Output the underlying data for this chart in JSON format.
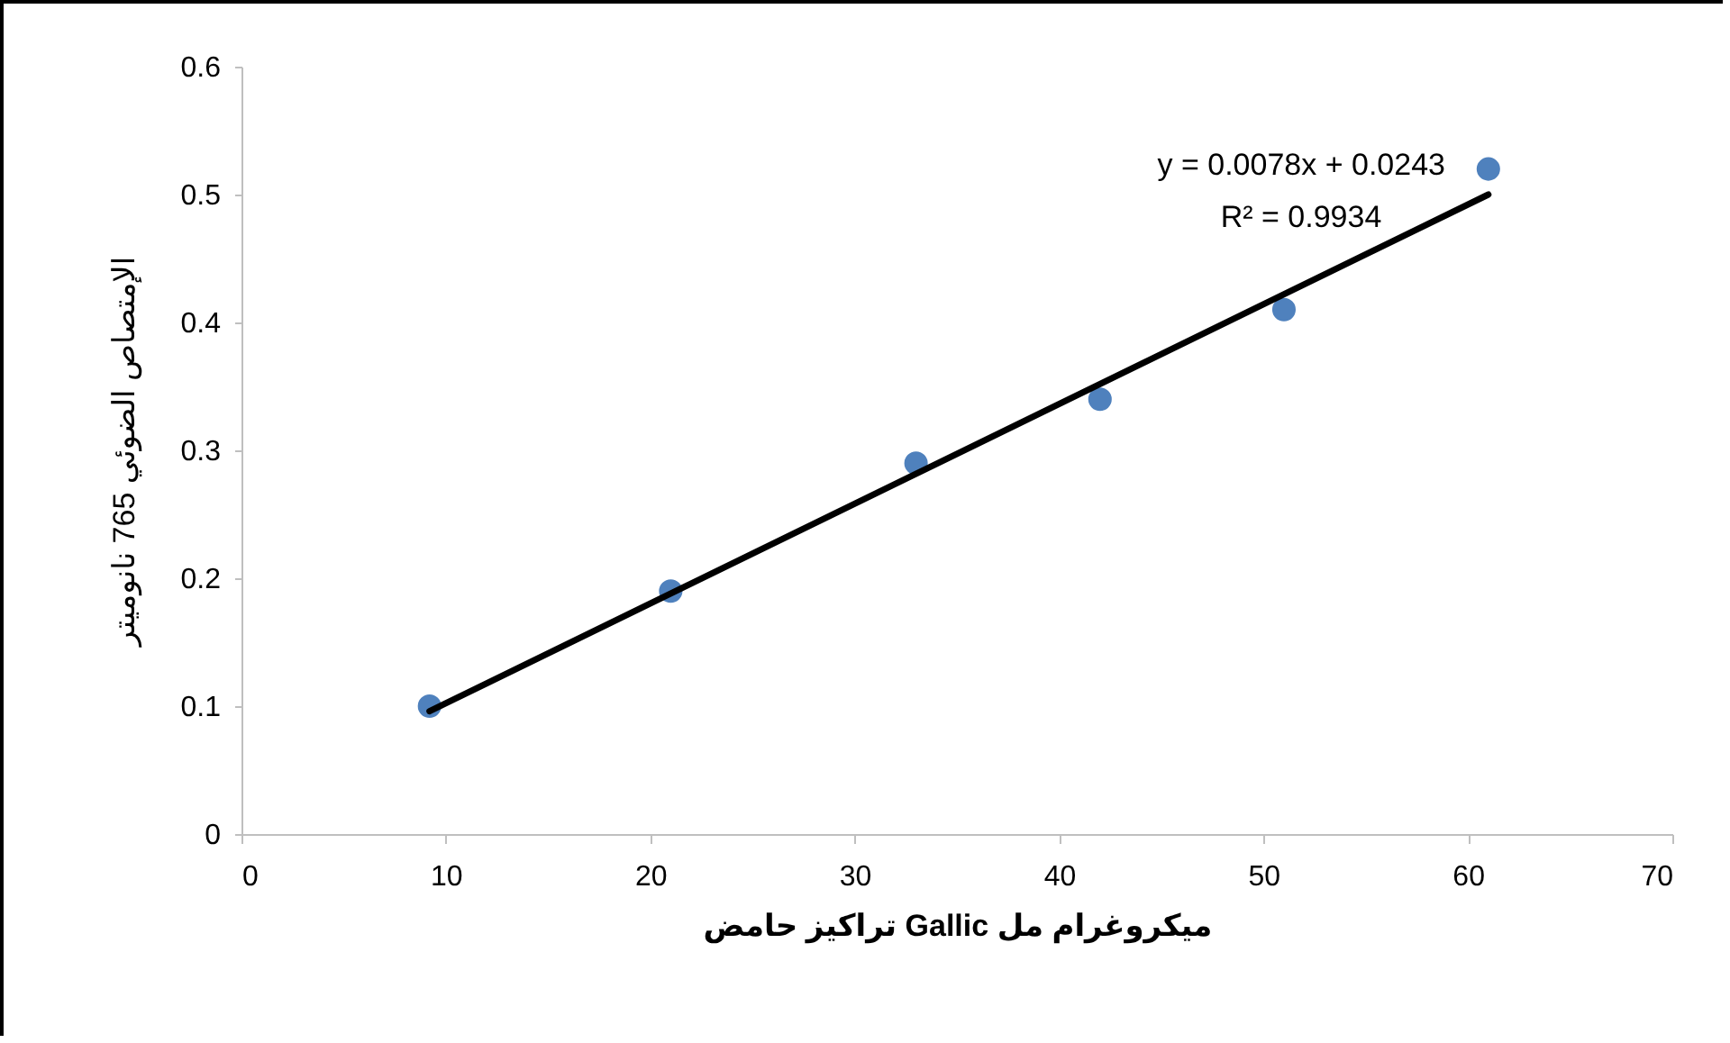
{
  "chart_data": {
    "type": "scatter",
    "xlabel": "تراكيز حامض Gallic ميكروغرام مل",
    "ylabel": "الإمتصاص الضوئي 765 نانوميتر",
    "x": [
      9.2,
      21,
      33,
      42,
      51,
      61
    ],
    "series": [
      {
        "color": "#4f81bd",
        "values": [
          0.1,
          0.19,
          0.29,
          0.34,
          0.41,
          0.52
        ]
      },
      {
        "type": "line",
        "color": "#000000",
        "marker": "none",
        "x": [
          9.2,
          61
        ],
        "values": [
          0.096,
          0.5
        ]
      }
    ],
    "annotations": [
      "y = 0.0078x + 0.0243",
      "R² = 0.9934"
    ],
    "xlim": [
      0,
      70
    ],
    "xticks": [
      0,
      10,
      20,
      30,
      40,
      50,
      60,
      70
    ],
    "ylim": [
      0,
      0.6
    ],
    "yticks": [
      0,
      0.1,
      0.2,
      0.3,
      0.4,
      0.5,
      0.6
    ],
    "grid": false,
    "marker": "circle"
  }
}
